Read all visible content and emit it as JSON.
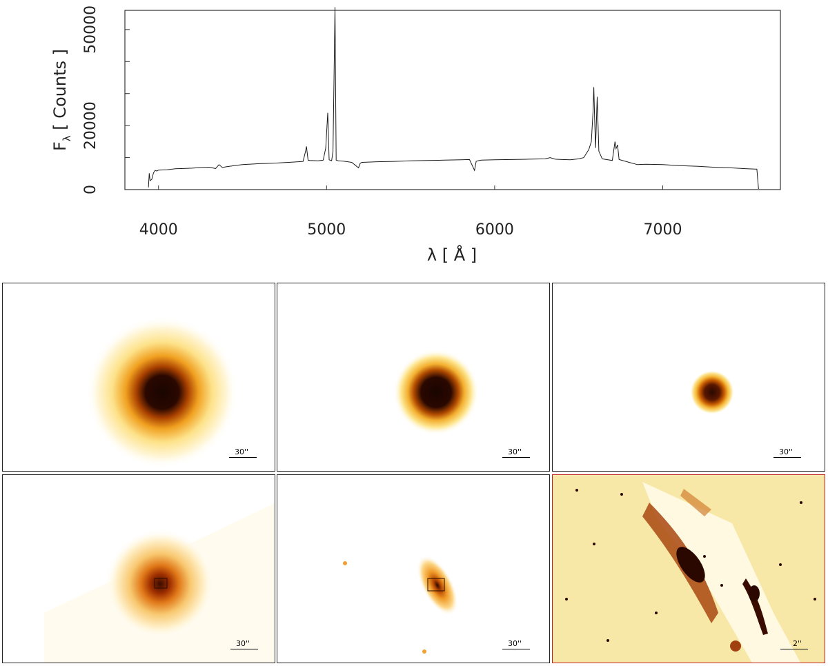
{
  "chart_data": {
    "type": "line",
    "title": "",
    "xlabel": "λ [ Å ]",
    "ylabel_main": "F",
    "ylabel_sub": "λ",
    "ylabel_rest": " [ Counts ]",
    "xlim": [
      3800,
      7700
    ],
    "ylim": [
      0,
      56000
    ],
    "xticks": [
      4000,
      5000,
      6000,
      7000
    ],
    "xtick_labels": [
      "4000",
      "5000",
      "6000",
      "7000"
    ],
    "yticks": [
      0,
      20000,
      50000
    ],
    "ytick_labels": [
      "0",
      "20000",
      "50000"
    ],
    "ytick_minor": [
      10000,
      30000,
      40000
    ],
    "grid": false,
    "series": [
      {
        "x": [
          3940,
          3945,
          3950,
          3960,
          3970,
          3980,
          3990,
          4000,
          4050,
          4100,
          4150,
          4200,
          4250,
          4300,
          4340,
          4360,
          4380,
          4400,
          4450,
          4500,
          4600,
          4700,
          4800,
          4860,
          4875,
          4880,
          4890,
          4900,
          4950,
          4980,
          4995,
          5007,
          5015,
          5030,
          5038,
          5050,
          5057,
          5070,
          5100,
          5150,
          5190,
          5200,
          5210,
          5250,
          5300,
          5400,
          5500,
          5600,
          5700,
          5800,
          5850,
          5880,
          5890,
          5900,
          5920,
          6000,
          6100,
          6200,
          6300,
          6330,
          6360,
          6400,
          6450,
          6500,
          6530,
          6560,
          6575,
          6585,
          6590,
          6595,
          6600,
          6610,
          6620,
          6640,
          6700,
          6716,
          6722,
          6731,
          6740,
          6800,
          6850,
          6900,
          7000,
          7100,
          7200,
          7300,
          7400,
          7500,
          7550,
          7560,
          7570
        ],
        "y": [
          700,
          5100,
          2800,
          3200,
          5200,
          6000,
          5800,
          6100,
          6200,
          6500,
          6600,
          6700,
          6900,
          7000,
          6600,
          7800,
          6900,
          7100,
          7500,
          7800,
          8100,
          8300,
          8600,
          8800,
          12000,
          13500,
          9200,
          9100,
          9000,
          9200,
          13000,
          24000,
          9300,
          9000,
          12000,
          57000,
          9200,
          9000,
          8900,
          8500,
          6800,
          8200,
          8500,
          8600,
          8700,
          8800,
          9000,
          9100,
          9200,
          9300,
          9400,
          6000,
          8800,
          9000,
          9200,
          9300,
          9400,
          9500,
          9600,
          10000,
          9500,
          9400,
          9300,
          9600,
          10000,
          12500,
          15000,
          24000,
          32000,
          22000,
          13000,
          29000,
          12000,
          9600,
          9100,
          15000,
          12800,
          14000,
          9400,
          8500,
          7800,
          7900,
          7800,
          7500,
          7300,
          7000,
          6800,
          6500,
          6400,
          6400,
          200
        ]
      }
    ]
  },
  "panels": [
    {
      "label": "30''"
    },
    {
      "label": "30''"
    },
    {
      "label": "30''"
    },
    {
      "label": "30''"
    },
    {
      "label": "30''"
    },
    {
      "label": "2''"
    }
  ],
  "colors": {
    "line": "#1a1a1a",
    "axis": "#333333",
    "text": "#222222",
    "frame_red": "#c02020"
  }
}
